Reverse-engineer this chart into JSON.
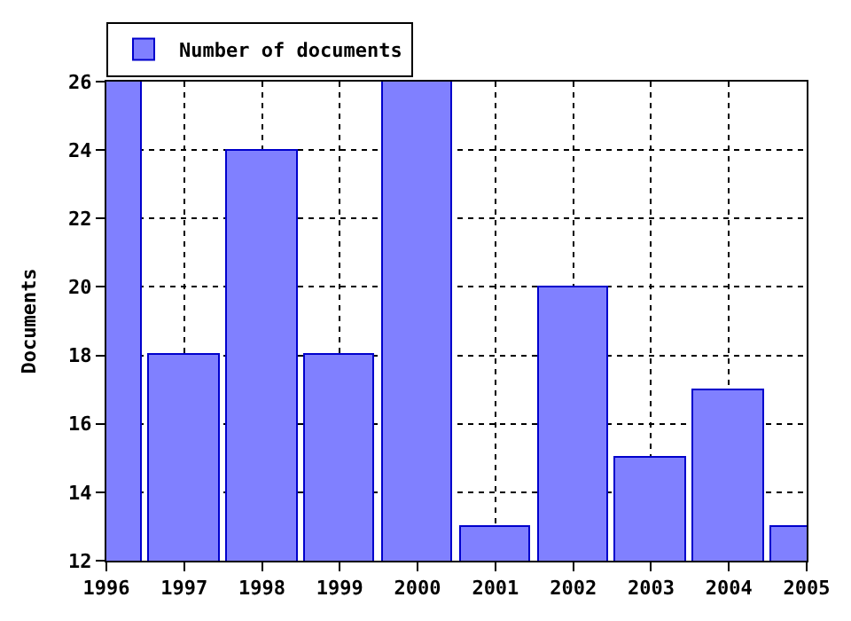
{
  "chart_data": {
    "type": "bar",
    "ylabel": "Documents",
    "x": [
      1996,
      1997,
      1998,
      1999,
      2000,
      2001,
      2002,
      2003,
      2004,
      2005
    ],
    "series": [
      {
        "name": "Number of documents",
        "color": "#8080ff",
        "values": [
          26,
          18,
          24,
          18,
          26,
          13,
          20,
          15,
          17,
          13
        ]
      }
    ],
    "xlim": [
      1996,
      2005
    ],
    "xticks": [
      1996,
      1997,
      1998,
      1999,
      2000,
      2001,
      2002,
      2003,
      2004,
      2005
    ],
    "ylim": [
      12,
      26
    ],
    "yticks": [
      12,
      14,
      16,
      18,
      20,
      22,
      24,
      26
    ],
    "grid": true,
    "legend": "top left"
  }
}
